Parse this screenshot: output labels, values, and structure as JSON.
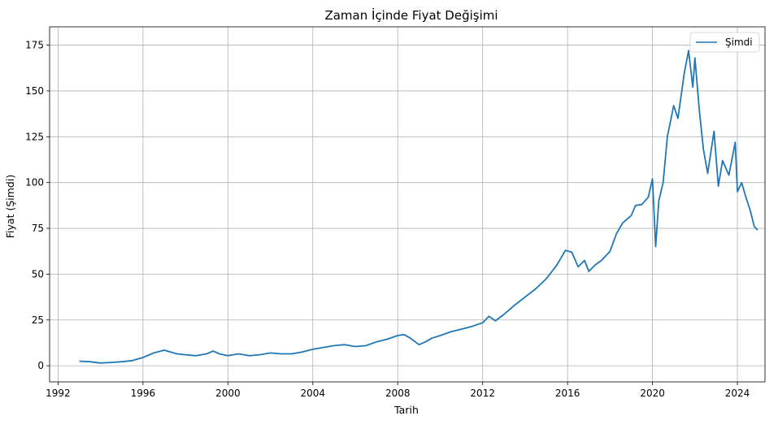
{
  "chart_data": {
    "type": "line",
    "title": "Zaman İçinde Fiyat Değişimi",
    "xlabel": "Tarih",
    "ylabel": "Fiyat (Şimdi)",
    "xlim": [
      1991.6,
      2025.3
    ],
    "ylim": [
      -8.8,
      185
    ],
    "x_ticks": [
      1992,
      1996,
      2000,
      2004,
      2008,
      2012,
      2016,
      2020,
      2024
    ],
    "y_ticks": [
      0,
      25,
      50,
      75,
      100,
      125,
      150,
      175
    ],
    "grid": true,
    "legend_position": "top-right",
    "series": [
      {
        "name": "Şimdi",
        "color": "#1f77b4",
        "x": [
          1993.0,
          1993.5,
          1994.0,
          1994.5,
          1995.0,
          1995.5,
          1996.0,
          1996.5,
          1997.0,
          1997.3,
          1997.6,
          1998.0,
          1998.5,
          1999.0,
          1999.3,
          1999.6,
          2000.0,
          2000.5,
          2001.0,
          2001.5,
          2002.0,
          2002.5,
          2003.0,
          2003.5,
          2004.0,
          2004.5,
          2005.0,
          2005.5,
          2006.0,
          2006.5,
          2007.0,
          2007.5,
          2008.0,
          2008.3,
          2008.6,
          2009.0,
          2009.3,
          2009.6,
          2010.0,
          2010.5,
          2011.0,
          2011.5,
          2012.0,
          2012.3,
          2012.6,
          2013.0,
          2013.5,
          2014.0,
          2014.5,
          2015.0,
          2015.5,
          2015.9,
          2016.2,
          2016.5,
          2016.8,
          2017.0,
          2017.3,
          2017.6,
          2018.0,
          2018.3,
          2018.6,
          2019.0,
          2019.2,
          2019.5,
          2019.8,
          2020.0,
          2020.15,
          2020.3,
          2020.5,
          2020.7,
          2021.0,
          2021.2,
          2021.5,
          2021.7,
          2021.9,
          2022.0,
          2022.2,
          2022.4,
          2022.6,
          2022.9,
          2023.1,
          2023.3,
          2023.6,
          2023.9,
          2024.0,
          2024.2,
          2024.4,
          2024.6,
          2024.8,
          2024.95
        ],
        "values": [
          2.5,
          2.2,
          1.5,
          1.8,
          2.2,
          2.8,
          4.5,
          7.0,
          8.5,
          7.5,
          6.5,
          6.0,
          5.5,
          6.5,
          8.0,
          6.5,
          5.5,
          6.5,
          5.5,
          6.0,
          7.0,
          6.5,
          6.5,
          7.5,
          9.0,
          10.0,
          11.0,
          11.5,
          10.5,
          11.0,
          13.0,
          14.5,
          16.5,
          17.0,
          15.0,
          11.5,
          13.0,
          15.0,
          16.5,
          18.5,
          20.0,
          21.5,
          23.5,
          27.0,
          24.5,
          28.0,
          33.0,
          37.5,
          42.0,
          47.5,
          55.0,
          63.0,
          62.0,
          54.0,
          57.5,
          51.5,
          55.0,
          57.5,
          62.5,
          72.0,
          78.0,
          82.0,
          87.5,
          88.0,
          92.0,
          102.0,
          65.0,
          90.0,
          100.0,
          125.0,
          142.0,
          135.0,
          160.0,
          172.0,
          152.0,
          168.0,
          140.0,
          118.0,
          105.0,
          128.0,
          98.0,
          112.0,
          104.0,
          122.0,
          95.0,
          100.0,
          92.0,
          85.0,
          76.0,
          74.0
        ]
      }
    ]
  }
}
